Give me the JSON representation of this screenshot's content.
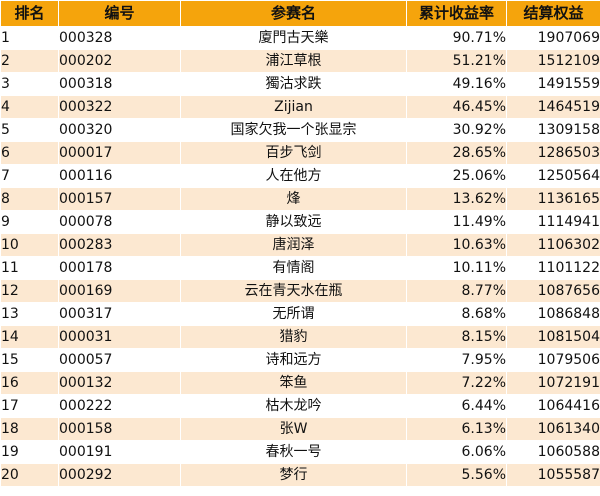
{
  "columns": {
    "rank": "排名",
    "id": "编号",
    "name": "参赛名",
    "rate": "累计收益率",
    "equity": "结算权益"
  },
  "rows": [
    {
      "rank": "1",
      "id": "000328",
      "name": "廈門古天樂",
      "rate": "90.71%",
      "equity": "1907069"
    },
    {
      "rank": "2",
      "id": "000202",
      "name": "浦江草根",
      "rate": "51.21%",
      "equity": "1512109"
    },
    {
      "rank": "3",
      "id": "000318",
      "name": "獨沽求跌",
      "rate": "49.16%",
      "equity": "1491559"
    },
    {
      "rank": "4",
      "id": "000322",
      "name": "Zijian",
      "rate": "46.45%",
      "equity": "1464519"
    },
    {
      "rank": "5",
      "id": "000320",
      "name": "国家欠我一个张显宗",
      "rate": "30.92%",
      "equity": "1309158"
    },
    {
      "rank": "6",
      "id": "000017",
      "name": "百步飞剑",
      "rate": "28.65%",
      "equity": "1286503"
    },
    {
      "rank": "7",
      "id": "000116",
      "name": "人在他方",
      "rate": "25.06%",
      "equity": "1250564"
    },
    {
      "rank": "8",
      "id": "000157",
      "name": "烽",
      "rate": "13.62%",
      "equity": "1136165"
    },
    {
      "rank": "9",
      "id": "000078",
      "name": "静以致远",
      "rate": "11.49%",
      "equity": "1114941"
    },
    {
      "rank": "10",
      "id": "000283",
      "name": "唐润泽",
      "rate": "10.63%",
      "equity": "1106302"
    },
    {
      "rank": "11",
      "id": "000178",
      "name": "有情阁",
      "rate": "10.11%",
      "equity": "1101122"
    },
    {
      "rank": "12",
      "id": "000169",
      "name": "云在青天水在瓶",
      "rate": "8.77%",
      "equity": "1087656"
    },
    {
      "rank": "13",
      "id": "000317",
      "name": "无所谓",
      "rate": "8.68%",
      "equity": "1086848"
    },
    {
      "rank": "14",
      "id": "000031",
      "name": "猎豹",
      "rate": "8.15%",
      "equity": "1081504"
    },
    {
      "rank": "15",
      "id": "000057",
      "name": "诗和远方",
      "rate": "7.95%",
      "equity": "1079506"
    },
    {
      "rank": "16",
      "id": "000132",
      "name": "笨鱼",
      "rate": "7.22%",
      "equity": "1072191"
    },
    {
      "rank": "17",
      "id": "000222",
      "name": "枯木龙吟",
      "rate": "6.44%",
      "equity": "1064416"
    },
    {
      "rank": "18",
      "id": "000158",
      "name": "张W",
      "rate": "6.13%",
      "equity": "1061340"
    },
    {
      "rank": "19",
      "id": "000191",
      "name": "春秋一号",
      "rate": "6.06%",
      "equity": "1060588"
    },
    {
      "rank": "20",
      "id": "000292",
      "name": "梦行",
      "rate": "5.56%",
      "equity": "1055587"
    }
  ]
}
